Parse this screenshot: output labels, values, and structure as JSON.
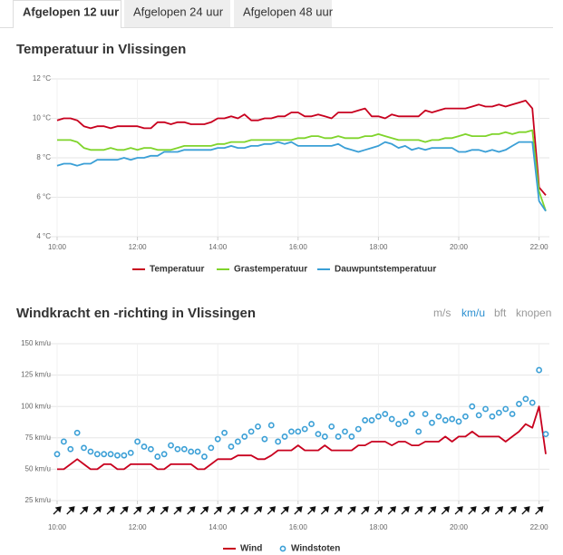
{
  "tabs": [
    "Afgelopen 12 uur",
    "Afgelopen 24 uur",
    "Afgelopen 48 uur"
  ],
  "units": [
    "m/s",
    "km/u",
    "bft",
    "knopen"
  ],
  "chart_data": [
    {
      "type": "line",
      "title": "Temperatuur in Vlissingen",
      "x": [
        "10:00",
        "10:10",
        "10:20",
        "10:30",
        "10:40",
        "10:50",
        "11:00",
        "11:10",
        "11:20",
        "11:30",
        "11:40",
        "11:50",
        "12:00",
        "12:10",
        "12:20",
        "12:30",
        "12:40",
        "12:50",
        "13:00",
        "13:10",
        "13:20",
        "13:30",
        "13:40",
        "13:50",
        "14:00",
        "14:10",
        "14:20",
        "14:30",
        "14:40",
        "14:50",
        "15:00",
        "15:10",
        "15:20",
        "15:30",
        "15:40",
        "15:50",
        "16:00",
        "16:10",
        "16:20",
        "16:30",
        "16:40",
        "16:50",
        "17:00",
        "17:10",
        "17:20",
        "17:30",
        "17:40",
        "17:50",
        "18:00",
        "18:10",
        "18:20",
        "18:30",
        "18:40",
        "18:50",
        "19:00",
        "19:10",
        "19:20",
        "19:30",
        "19:40",
        "19:50",
        "20:00",
        "20:10",
        "20:20",
        "20:30",
        "20:40",
        "20:50",
        "21:00",
        "21:10",
        "21:20",
        "21:30",
        "21:40",
        "21:50",
        "22:00",
        "22:10"
      ],
      "xlim": [
        "10:00",
        "22:10"
      ],
      "xticks": [
        "10:00",
        "12:00",
        "14:00",
        "16:00",
        "18:00",
        "20:00",
        "22:00"
      ],
      "ylim": [
        4,
        12
      ],
      "yticks": [
        {
          "value": 4,
          "label": "4 °C"
        },
        {
          "value": 6,
          "label": "6 °C"
        },
        {
          "value": 8,
          "label": "8 °C"
        },
        {
          "value": 10,
          "label": "10 °C"
        },
        {
          "value": 12,
          "label": "12 °C"
        }
      ],
      "grid": true,
      "series": [
        {
          "name": "Temperatuur",
          "color": "#c8001e",
          "mode": "line",
          "values": [
            9.9,
            10.0,
            10.0,
            9.9,
            9.6,
            9.5,
            9.6,
            9.6,
            9.5,
            9.6,
            9.6,
            9.6,
            9.6,
            9.5,
            9.5,
            9.8,
            9.8,
            9.7,
            9.8,
            9.8,
            9.7,
            9.7,
            9.7,
            9.8,
            10.0,
            10.0,
            10.1,
            10.0,
            10.2,
            9.9,
            9.9,
            10.0,
            10.0,
            10.1,
            10.1,
            10.3,
            10.3,
            10.1,
            10.1,
            10.2,
            10.1,
            10.0,
            10.3,
            10.3,
            10.3,
            10.4,
            10.5,
            10.1,
            10.1,
            10.0,
            10.2,
            10.1,
            10.1,
            10.1,
            10.1,
            10.4,
            10.3,
            10.4,
            10.5,
            10.5,
            10.5,
            10.5,
            10.6,
            10.7,
            10.6,
            10.6,
            10.7,
            10.6,
            10.7,
            10.8,
            10.9,
            10.5,
            6.5,
            6.1
          ]
        },
        {
          "name": "Grastemperatuur",
          "color": "#7fd42b",
          "mode": "line",
          "values": [
            8.9,
            8.9,
            8.9,
            8.8,
            8.5,
            8.4,
            8.4,
            8.4,
            8.5,
            8.4,
            8.4,
            8.5,
            8.4,
            8.5,
            8.5,
            8.4,
            8.4,
            8.4,
            8.5,
            8.6,
            8.6,
            8.6,
            8.6,
            8.6,
            8.7,
            8.7,
            8.8,
            8.8,
            8.8,
            8.9,
            8.9,
            8.9,
            8.9,
            8.9,
            8.9,
            8.9,
            9.0,
            9.0,
            9.1,
            9.1,
            9.0,
            9.0,
            9.1,
            9.0,
            9.0,
            9.0,
            9.1,
            9.1,
            9.2,
            9.1,
            9.0,
            8.9,
            8.9,
            8.9,
            8.9,
            8.8,
            8.9,
            8.9,
            9.0,
            9.0,
            9.1,
            9.2,
            9.1,
            9.1,
            9.1,
            9.2,
            9.2,
            9.3,
            9.2,
            9.3,
            9.3,
            9.4,
            6.3,
            5.3
          ]
        },
        {
          "name": "Dauwpuntstemperatuur",
          "color": "#3a9fd6",
          "mode": "line",
          "values": [
            7.6,
            7.7,
            7.7,
            7.6,
            7.7,
            7.7,
            7.9,
            7.9,
            7.9,
            7.9,
            8.0,
            7.9,
            8.0,
            8.0,
            8.1,
            8.1,
            8.3,
            8.3,
            8.3,
            8.4,
            8.4,
            8.4,
            8.4,
            8.4,
            8.5,
            8.5,
            8.6,
            8.5,
            8.5,
            8.6,
            8.6,
            8.7,
            8.7,
            8.8,
            8.7,
            8.8,
            8.6,
            8.6,
            8.6,
            8.6,
            8.6,
            8.6,
            8.7,
            8.5,
            8.4,
            8.3,
            8.4,
            8.5,
            8.6,
            8.8,
            8.7,
            8.5,
            8.6,
            8.4,
            8.5,
            8.4,
            8.5,
            8.5,
            8.5,
            8.5,
            8.3,
            8.3,
            8.4,
            8.4,
            8.3,
            8.4,
            8.3,
            8.4,
            8.6,
            8.8,
            8.8,
            8.8,
            5.8,
            5.3
          ]
        }
      ]
    },
    {
      "type": "line",
      "title": "Windkracht en -richting in Vlissingen",
      "x": [
        "10:00",
        "10:10",
        "10:20",
        "10:30",
        "10:40",
        "10:50",
        "11:00",
        "11:10",
        "11:20",
        "11:30",
        "11:40",
        "11:50",
        "12:00",
        "12:10",
        "12:20",
        "12:30",
        "12:40",
        "12:50",
        "13:00",
        "13:10",
        "13:20",
        "13:30",
        "13:40",
        "13:50",
        "14:00",
        "14:10",
        "14:20",
        "14:30",
        "14:40",
        "14:50",
        "15:00",
        "15:10",
        "15:20",
        "15:30",
        "15:40",
        "15:50",
        "16:00",
        "16:10",
        "16:20",
        "16:30",
        "16:40",
        "16:50",
        "17:00",
        "17:10",
        "17:20",
        "17:30",
        "17:40",
        "17:50",
        "18:00",
        "18:10",
        "18:20",
        "18:30",
        "18:40",
        "18:50",
        "19:00",
        "19:10",
        "19:20",
        "19:30",
        "19:40",
        "19:50",
        "20:00",
        "20:10",
        "20:20",
        "20:30",
        "20:40",
        "20:50",
        "21:00",
        "21:10",
        "21:20",
        "21:30",
        "21:40",
        "21:50",
        "22:00",
        "22:10"
      ],
      "xlim": [
        "10:00",
        "22:10"
      ],
      "xticks": [
        "10:00",
        "12:00",
        "14:00",
        "16:00",
        "18:00",
        "20:00",
        "22:00"
      ],
      "ylim": [
        25,
        150
      ],
      "yticks": [
        {
          "value": 25,
          "label": "25 km/u"
        },
        {
          "value": 50,
          "label": "50 km/u"
        },
        {
          "value": 75,
          "label": "75 km/u"
        },
        {
          "value": 100,
          "label": "100 km/u"
        },
        {
          "value": 125,
          "label": "125 km/u"
        },
        {
          "value": 150,
          "label": "150 km/u"
        }
      ],
      "grid": true,
      "series": [
        {
          "name": "Wind",
          "color": "#c8001e",
          "mode": "line",
          "values": [
            50,
            50,
            54,
            58,
            54,
            50,
            50,
            54,
            54,
            50,
            50,
            54,
            54,
            54,
            54,
            50,
            50,
            54,
            54,
            54,
            54,
            50,
            50,
            54,
            58,
            58,
            58,
            61,
            61,
            61,
            58,
            58,
            61,
            65,
            65,
            65,
            69,
            65,
            65,
            65,
            69,
            65,
            65,
            65,
            65,
            69,
            69,
            72,
            72,
            72,
            69,
            72,
            72,
            69,
            69,
            72,
            72,
            72,
            76,
            72,
            76,
            76,
            80,
            76,
            76,
            76,
            76,
            72,
            76,
            80,
            86,
            83,
            100,
            62
          ]
        },
        {
          "name": "Windstoten",
          "color": "#3a9fd6",
          "mode": "markers",
          "values": [
            62,
            72,
            66,
            79,
            67,
            64,
            62,
            62,
            62,
            61,
            61,
            63,
            72,
            68,
            66,
            60,
            62,
            69,
            66,
            66,
            64,
            64,
            60,
            67,
            74,
            79,
            68,
            72,
            76,
            80,
            84,
            74,
            85,
            72,
            76,
            80,
            80,
            82,
            86,
            78,
            76,
            84,
            76,
            80,
            76,
            82,
            89,
            89,
            92,
            94,
            90,
            86,
            88,
            94,
            80,
            94,
            87,
            92,
            89,
            90,
            88,
            92,
            100,
            93,
            98,
            92,
            95,
            98,
            94,
            102,
            106,
            103,
            129,
            78
          ]
        }
      ]
    }
  ]
}
